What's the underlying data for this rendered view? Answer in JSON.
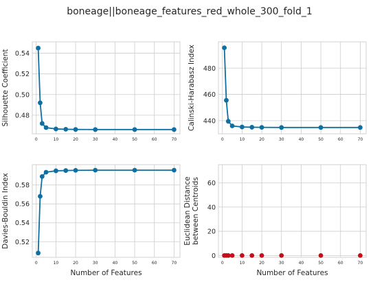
{
  "figure": {
    "title": "boneage||boneage_features_red_whole_300_fold_1"
  },
  "colors": {
    "line": "#0e6fa3",
    "marker_blue": "#0e6fa3",
    "marker_red": "#c0111a",
    "panel_bg": "#ffffff",
    "grid": "#cccccc",
    "spine": "#d0d0d0"
  },
  "chart_data": [
    {
      "type": "line",
      "name": "silhouette",
      "xlabel": "",
      "ylabel": "Silhouette Coefficient",
      "xlim": [
        -2,
        73
      ],
      "ylim": [
        0.462,
        0.551
      ],
      "xticks": [
        0,
        10,
        20,
        30,
        40,
        50,
        60,
        70
      ],
      "yticks": [
        0.48,
        0.5,
        0.52,
        0.54
      ],
      "ytick_labels": [
        "0.48",
        "0.50",
        "0.52",
        "0.54"
      ],
      "x": [
        1,
        2,
        3,
        5,
        10,
        15,
        20,
        30,
        50,
        70
      ],
      "values": [
        0.545,
        0.492,
        0.472,
        0.468,
        0.4667,
        0.4664,
        0.4662,
        0.4661,
        0.4661,
        0.4661
      ],
      "marker_color": "blue",
      "show_line": true
    },
    {
      "type": "line",
      "name": "calinski",
      "xlabel": "",
      "ylabel": "Calinski-Harabasz Index",
      "xlim": [
        -2,
        73
      ],
      "ylim": [
        430,
        500
      ],
      "xticks": [
        0,
        10,
        20,
        30,
        40,
        50,
        60,
        70
      ],
      "yticks": [
        440,
        460,
        480
      ],
      "ytick_labels": [
        "440",
        "460",
        "480"
      ],
      "x": [
        1,
        2,
        3,
        5,
        10,
        15,
        20,
        30,
        50,
        70
      ],
      "values": [
        495.5,
        455.5,
        439.5,
        436.0,
        435.2,
        435.0,
        434.9,
        434.8,
        434.8,
        434.8
      ],
      "marker_color": "blue",
      "show_line": true
    },
    {
      "type": "line",
      "name": "davies",
      "xlabel": "Number of Features",
      "ylabel": "Davies-Bouldin Index",
      "xlim": [
        -2,
        73
      ],
      "ylim": [
        0.5035,
        0.6015
      ],
      "xticks": [
        0,
        10,
        20,
        30,
        40,
        50,
        60,
        70
      ],
      "yticks": [
        0.52,
        0.54,
        0.56,
        0.58
      ],
      "ytick_labels": [
        "0.52",
        "0.54",
        "0.56",
        "0.58"
      ],
      "x": [
        1,
        2,
        3,
        5,
        10,
        15,
        20,
        30,
        50,
        70
      ],
      "values": [
        0.508,
        0.568,
        0.589,
        0.5935,
        0.595,
        0.5953,
        0.5955,
        0.5957,
        0.5957,
        0.5957
      ],
      "marker_color": "blue",
      "show_line": true
    },
    {
      "type": "scatter",
      "name": "centroids",
      "xlabel": "Number of Features",
      "ylabel": "Euclidean Distance\nbetween Centroids",
      "ylabel_lines": [
        "Euclidean Distance",
        "between Centroids"
      ],
      "xlim": [
        -2,
        73
      ],
      "ylim": [
        -1.5,
        75
      ],
      "xticks": [
        0,
        10,
        20,
        30,
        40,
        50,
        60,
        70
      ],
      "yticks": [
        0,
        20,
        40,
        60
      ],
      "ytick_labels": [
        "0",
        "20",
        "40",
        "60"
      ],
      "x": [
        1,
        2,
        3,
        5,
        10,
        15,
        20,
        30,
        50,
        70
      ],
      "values": [
        0,
        0,
        0,
        0,
        0,
        0,
        0,
        0,
        0,
        0
      ],
      "marker_color": "red",
      "show_line": false
    }
  ]
}
